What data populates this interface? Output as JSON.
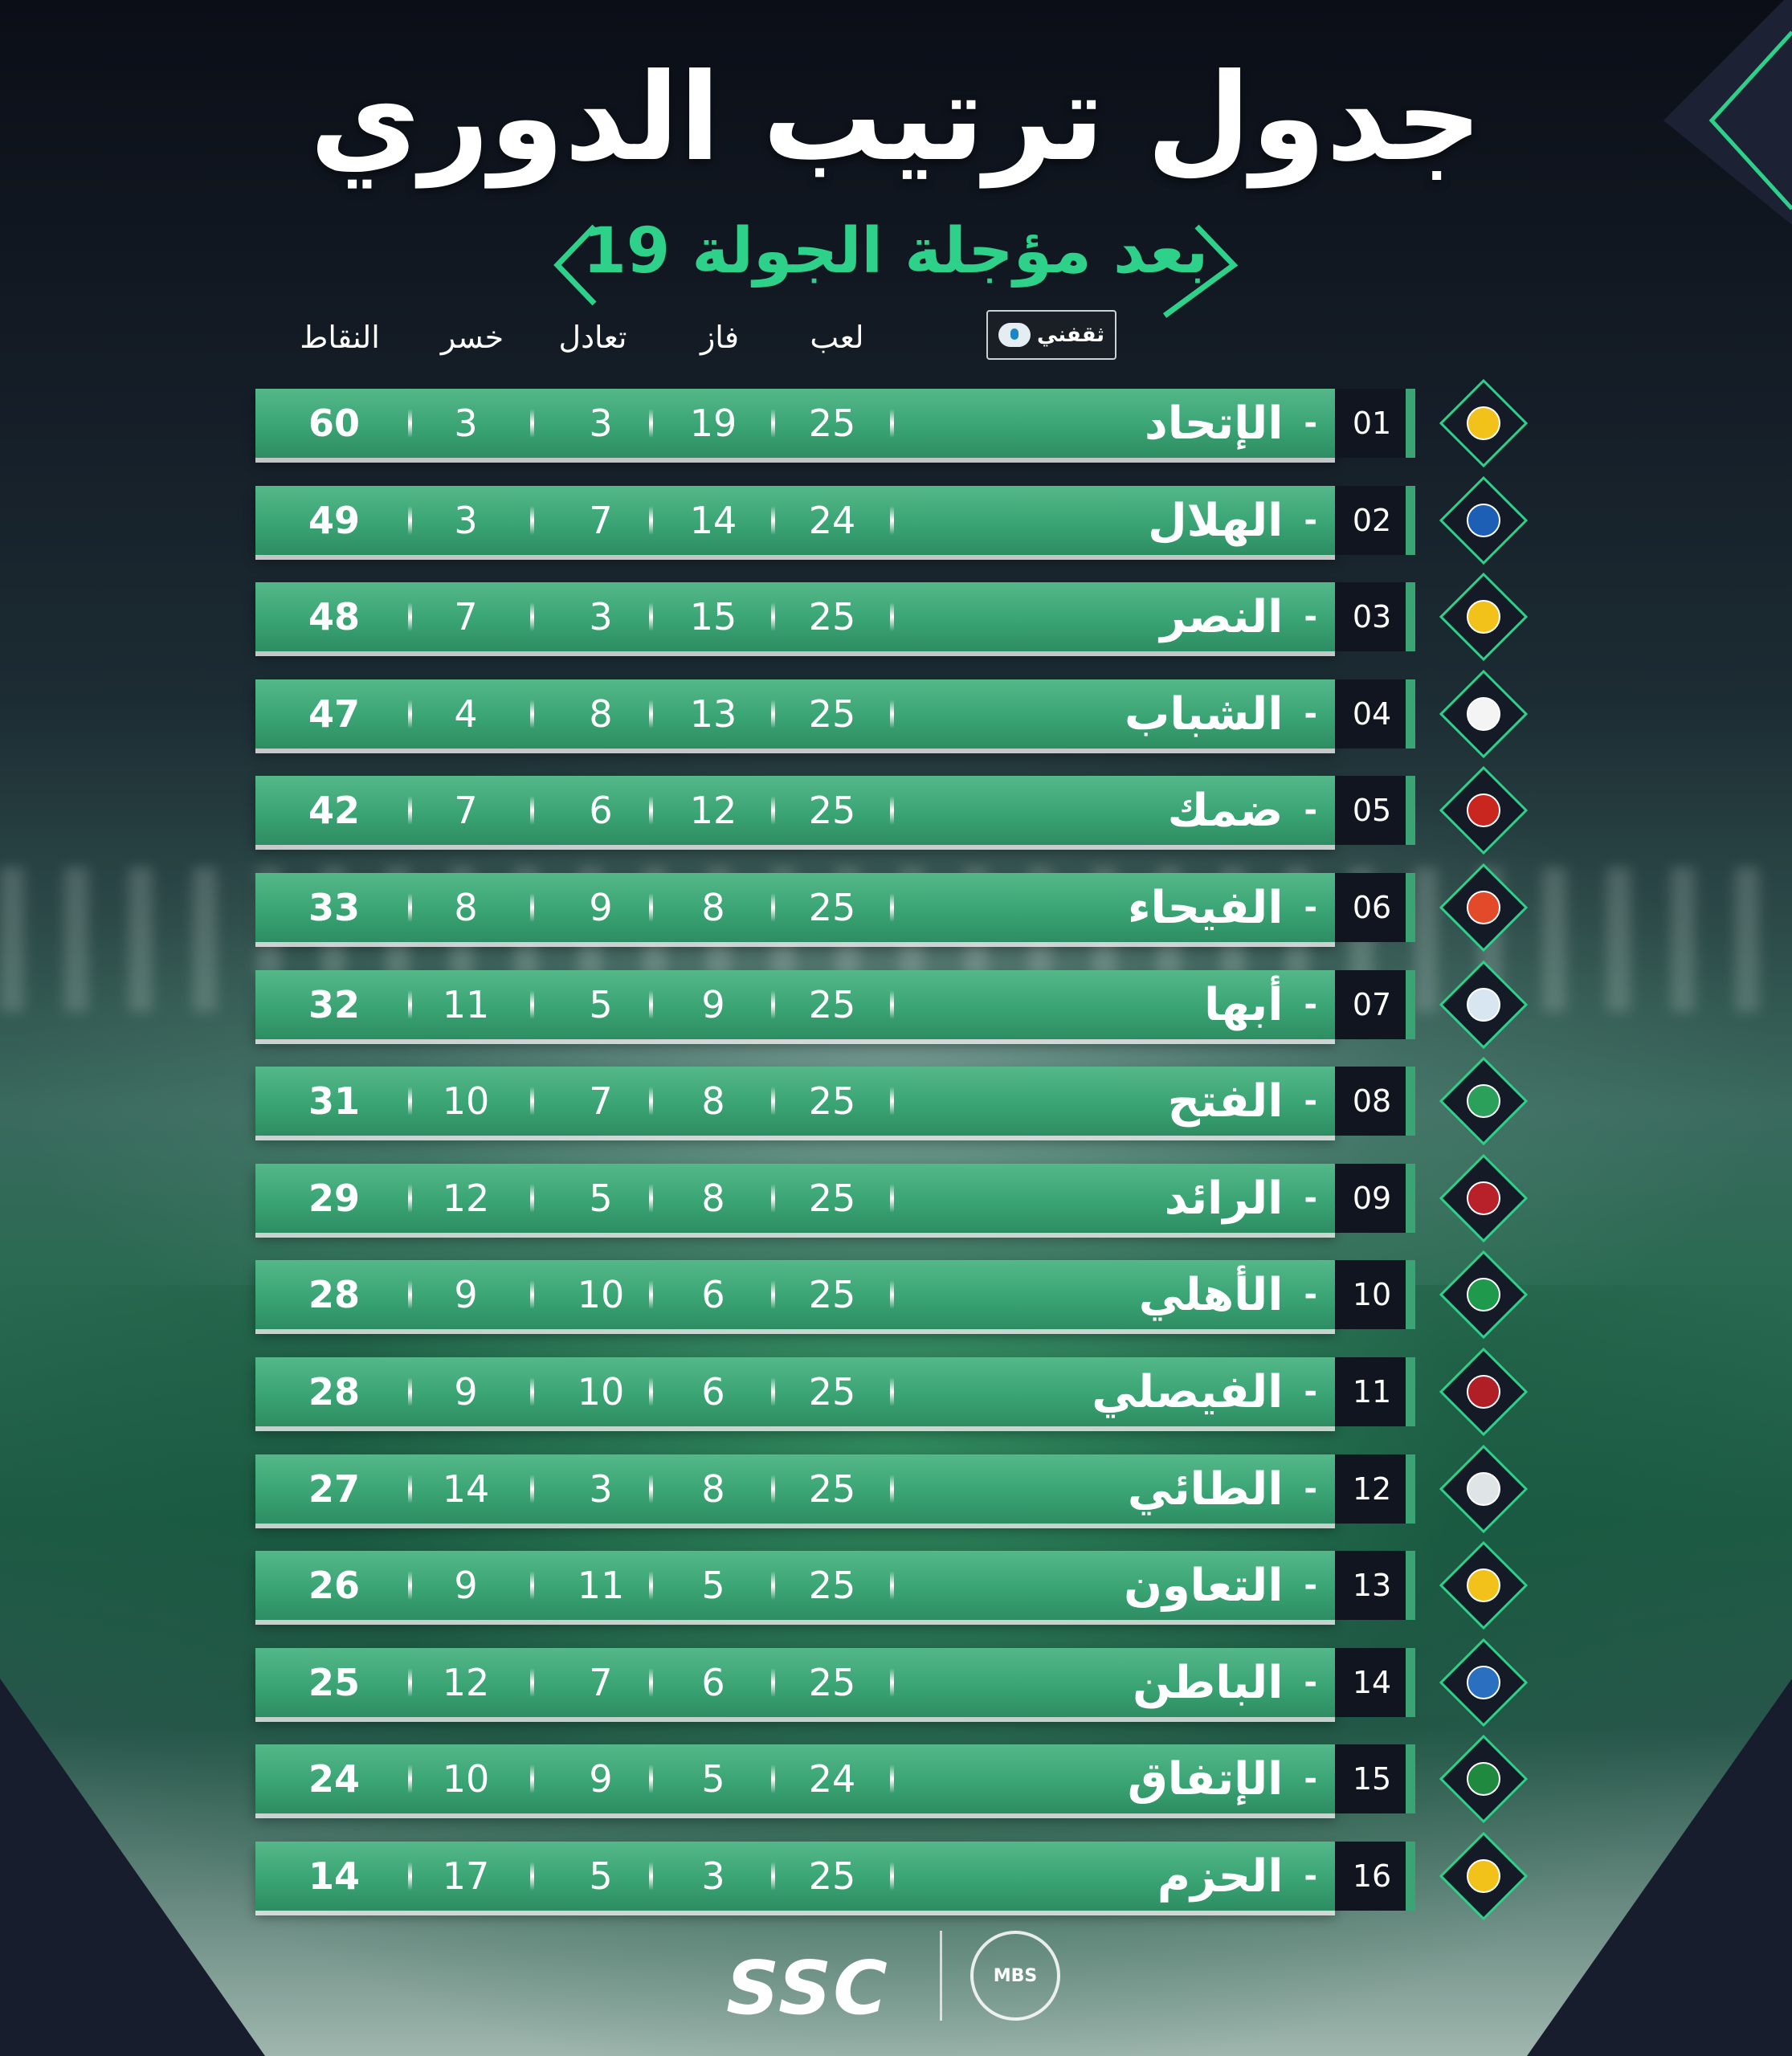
{
  "title": "جدول ترتيب الدوري",
  "subtitle": "بعد مؤجلة الجولة 19",
  "brand_badge": "ثقفني",
  "columns": {
    "played": "لعب",
    "won": "فاز",
    "drawn": "تعادل",
    "lost": "خسر",
    "points": "النقاط"
  },
  "standings": [
    {
      "rank": "01",
      "team": "الإتحاد",
      "played": "25",
      "won": "19",
      "drawn": "3",
      "lost": "3",
      "points": "60"
    },
    {
      "rank": "02",
      "team": "الهلال",
      "played": "24",
      "won": "14",
      "drawn": "7",
      "lost": "3",
      "points": "49"
    },
    {
      "rank": "03",
      "team": "النصر",
      "played": "25",
      "won": "15",
      "drawn": "3",
      "lost": "7",
      "points": "48"
    },
    {
      "rank": "04",
      "team": "الشباب",
      "played": "25",
      "won": "13",
      "drawn": "8",
      "lost": "4",
      "points": "47"
    },
    {
      "rank": "05",
      "team": "ضمك",
      "played": "25",
      "won": "12",
      "drawn": "6",
      "lost": "7",
      "points": "42"
    },
    {
      "rank": "06",
      "team": "الفيحاء",
      "played": "25",
      "won": "8",
      "drawn": "9",
      "lost": "8",
      "points": "33"
    },
    {
      "rank": "07",
      "team": "أبها",
      "played": "25",
      "won": "9",
      "drawn": "5",
      "lost": "11",
      "points": "32"
    },
    {
      "rank": "08",
      "team": "الفتح",
      "played": "25",
      "won": "8",
      "drawn": "7",
      "lost": "10",
      "points": "31"
    },
    {
      "rank": "09",
      "team": "الرائد",
      "played": "25",
      "won": "8",
      "drawn": "5",
      "lost": "12",
      "points": "29"
    },
    {
      "rank": "10",
      "team": "الأهلي",
      "played": "25",
      "won": "6",
      "drawn": "10",
      "lost": "9",
      "points": "28"
    },
    {
      "rank": "11",
      "team": "الفيصلي",
      "played": "25",
      "won": "6",
      "drawn": "10",
      "lost": "9",
      "points": "28"
    },
    {
      "rank": "12",
      "team": "الطائي",
      "played": "25",
      "won": "8",
      "drawn": "3",
      "lost": "14",
      "points": "27"
    },
    {
      "rank": "13",
      "team": "التعاون",
      "played": "25",
      "won": "5",
      "drawn": "11",
      "lost": "9",
      "points": "26"
    },
    {
      "rank": "14",
      "team": "الباطن",
      "played": "25",
      "won": "6",
      "drawn": "7",
      "lost": "12",
      "points": "25"
    },
    {
      "rank": "15",
      "team": "الإتفاق",
      "played": "24",
      "won": "5",
      "drawn": "9",
      "lost": "10",
      "points": "24"
    },
    {
      "rank": "16",
      "team": "الحزم",
      "played": "25",
      "won": "3",
      "drawn": "5",
      "lost": "17",
      "points": "14"
    }
  ],
  "crest_colors": [
    "#f2c21a",
    "#1d5fb5",
    "#f2c21a",
    "#f4f4f4",
    "#c8261f",
    "#e24a2a",
    "#d8e6f2",
    "#2aa05a",
    "#b8202a",
    "#1f9a4c",
    "#b01f25",
    "#dfe4e6",
    "#f2c21a",
    "#2a6fc0",
    "#1f8a3f",
    "#f2c21a"
  ],
  "footer": {
    "broadcaster": "SSC",
    "league_mark": "MBS"
  },
  "colors": {
    "accent": "#2ed18a",
    "row_bar": "#3aa474",
    "rank_cell": "#10151f"
  }
}
